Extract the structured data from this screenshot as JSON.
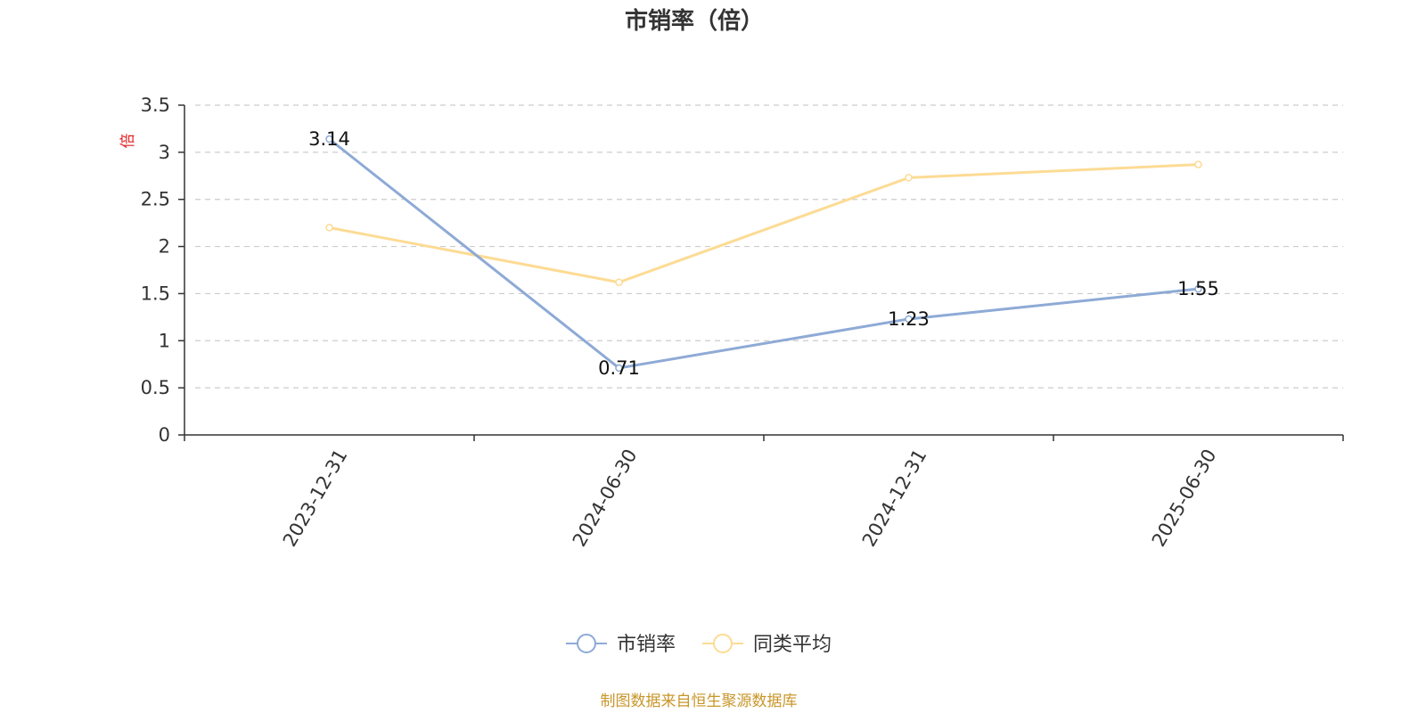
{
  "chart_data": {
    "type": "line",
    "title": "市销率（倍）",
    "ylabel": "倍",
    "xlabel": "",
    "categories": [
      "2023-12-31",
      "2024-06-30",
      "2024-12-31",
      "2025-06-30"
    ],
    "ylim": [
      0,
      3.5
    ],
    "yticks": [
      "0",
      "0.5",
      "1",
      "1.5",
      "2",
      "2.5",
      "3",
      "3.5"
    ],
    "grid": true,
    "legend_position": "bottom-center",
    "series": [
      {
        "name": "市销率",
        "values": [
          3.14,
          0.71,
          1.23,
          1.55
        ],
        "labels": [
          "3.14",
          "0.71",
          "1.23",
          "1.55"
        ],
        "color": "#8eaad6"
      },
      {
        "name": "同类平均",
        "values": [
          2.2,
          1.62,
          2.73,
          2.87
        ],
        "color": "#fddb94"
      }
    ]
  },
  "source_note": "制图数据来自恒生聚源数据库",
  "colors": {
    "axis": "#333333",
    "grid": "#cccccc",
    "unit": "#e02020",
    "source": "#c8962a"
  }
}
